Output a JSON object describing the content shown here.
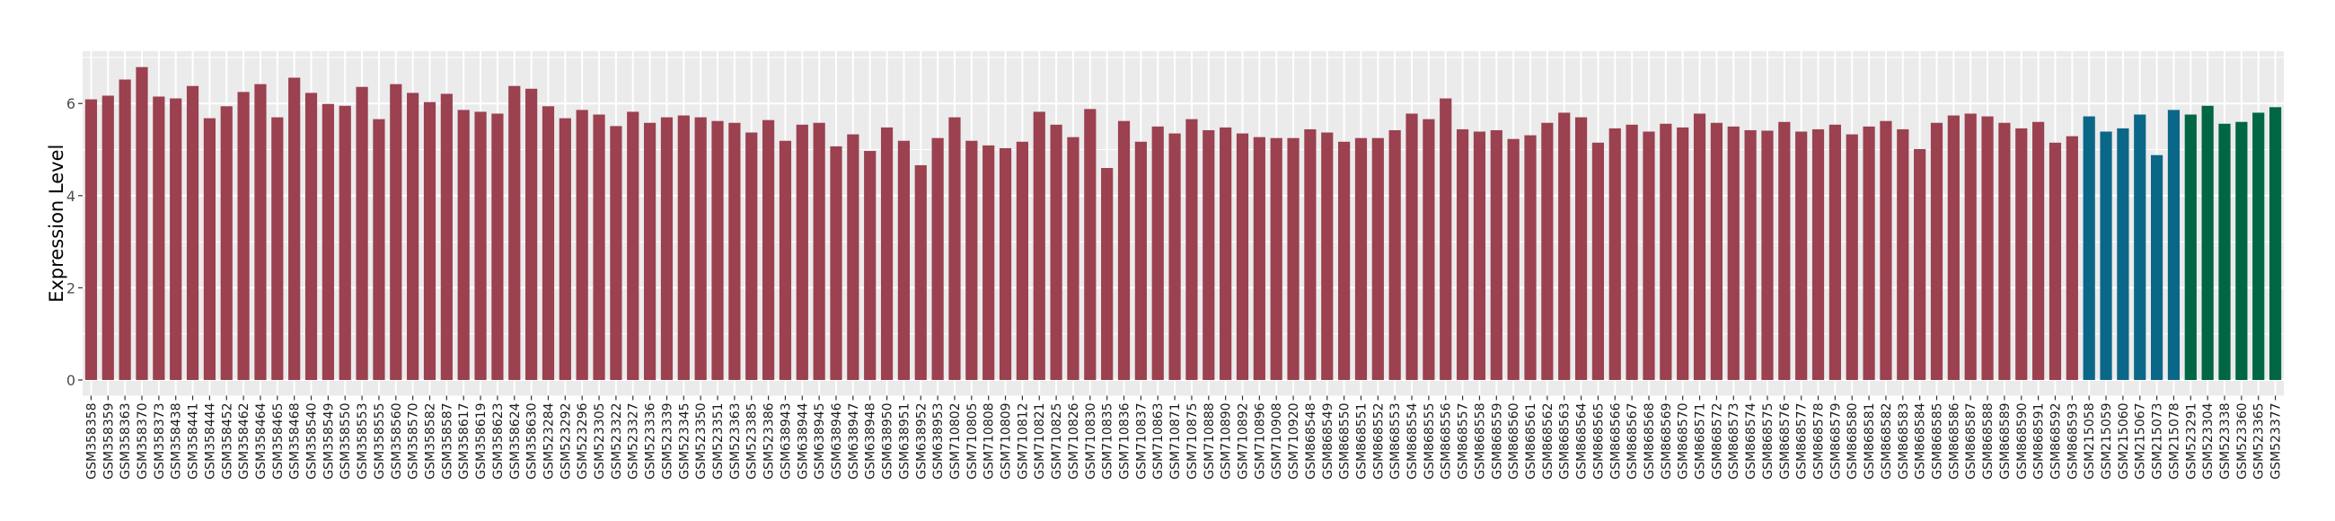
{
  "chart_data": {
    "type": "bar",
    "title": "",
    "xlabel": "",
    "ylabel": "Expression Level",
    "ylim": [
      -0.34,
      7.13
    ],
    "yticks": [
      0,
      2,
      4,
      6
    ],
    "grid": true,
    "legend": "none",
    "colors": {
      "group1": "#9B4150",
      "group2": "#0B6788",
      "group3": "#006644"
    },
    "categories": [
      "GSM358358",
      "GSM358359",
      "GSM358363",
      "GSM358370",
      "GSM358373",
      "GSM358438",
      "GSM358441",
      "GSM358444",
      "GSM358452",
      "GSM358462",
      "GSM358464",
      "GSM358465",
      "GSM358468",
      "GSM358540",
      "GSM358549",
      "GSM358550",
      "GSM358553",
      "GSM358555",
      "GSM358560",
      "GSM358570",
      "GSM358582",
      "GSM358587",
      "GSM358617",
      "GSM358619",
      "GSM358623",
      "GSM358624",
      "GSM358630",
      "GSM523284",
      "GSM523292",
      "GSM523296",
      "GSM523305",
      "GSM523322",
      "GSM523327",
      "GSM523336",
      "GSM523339",
      "GSM523345",
      "GSM523350",
      "GSM523351",
      "GSM523363",
      "GSM523385",
      "GSM523386",
      "GSM638943",
      "GSM638944",
      "GSM638945",
      "GSM638946",
      "GSM638947",
      "GSM638948",
      "GSM638950",
      "GSM638951",
      "GSM638952",
      "GSM638953",
      "GSM710802",
      "GSM710805",
      "GSM710808",
      "GSM710809",
      "GSM710812",
      "GSM710821",
      "GSM710825",
      "GSM710826",
      "GSM710830",
      "GSM710835",
      "GSM710836",
      "GSM710837",
      "GSM710863",
      "GSM710871",
      "GSM710875",
      "GSM710888",
      "GSM710890",
      "GSM710892",
      "GSM710896",
      "GSM710908",
      "GSM710920",
      "GSM868548",
      "GSM868549",
      "GSM868550",
      "GSM868551",
      "GSM868552",
      "GSM868553",
      "GSM868554",
      "GSM868555",
      "GSM868556",
      "GSM868557",
      "GSM868558",
      "GSM868559",
      "GSM868560",
      "GSM868561",
      "GSM868562",
      "GSM868563",
      "GSM868564",
      "GSM868565",
      "GSM868566",
      "GSM868567",
      "GSM868568",
      "GSM868569",
      "GSM868570",
      "GSM868571",
      "GSM868572",
      "GSM868573",
      "GSM868574",
      "GSM868575",
      "GSM868576",
      "GSM868577",
      "GSM868578",
      "GSM868579",
      "GSM868580",
      "GSM868581",
      "GSM868582",
      "GSM868583",
      "GSM868584",
      "GSM868585",
      "GSM868586",
      "GSM868587",
      "GSM868588",
      "GSM868589",
      "GSM868590",
      "GSM868591",
      "GSM868592",
      "GSM868593",
      "GSM215058",
      "GSM215059",
      "GSM215060",
      "GSM215067",
      "GSM215073",
      "GSM215078",
      "GSM523291",
      "GSM523304",
      "GSM523338",
      "GSM523360",
      "GSM523365",
      "GSM523377"
    ],
    "values": [
      6.09,
      6.17,
      6.52,
      6.79,
      6.15,
      6.11,
      6.38,
      5.68,
      5.94,
      6.25,
      6.42,
      5.7,
      6.56,
      6.23,
      5.99,
      5.95,
      6.36,
      5.66,
      6.42,
      6.23,
      6.03,
      6.21,
      5.86,
      5.82,
      5.78,
      6.38,
      6.32,
      5.94,
      5.68,
      5.86,
      5.76,
      5.51,
      5.82,
      5.58,
      5.7,
      5.74,
      5.7,
      5.62,
      5.58,
      5.37,
      5.64,
      5.19,
      5.54,
      5.58,
      5.07,
      5.33,
      4.97,
      5.48,
      5.19,
      4.66,
      5.25,
      5.7,
      5.19,
      5.09,
      5.03,
      5.17,
      5.82,
      5.54,
      5.27,
      5.88,
      4.6,
      5.62,
      5.17,
      5.5,
      5.35,
      5.66,
      5.42,
      5.48,
      5.35,
      5.27,
      5.25,
      5.25,
      5.44,
      5.37,
      5.17,
      5.25,
      5.25,
      5.42,
      5.78,
      5.66,
      6.11,
      5.44,
      5.39,
      5.42,
      5.23,
      5.31,
      5.58,
      5.8,
      5.7,
      5.15,
      5.46,
      5.54,
      5.39,
      5.56,
      5.48,
      5.78,
      5.58,
      5.5,
      5.42,
      5.41,
      5.6,
      5.39,
      5.44,
      5.54,
      5.33,
      5.5,
      5.62,
      5.44,
      5.01,
      5.58,
      5.74,
      5.78,
      5.72,
      5.58,
      5.46,
      5.6,
      5.15,
      5.29,
      5.72,
      5.39,
      5.46,
      5.76,
      4.88,
      5.86,
      5.76,
      5.95,
      5.56,
      5.6,
      5.8,
      5.92
    ],
    "groups": [
      "group1",
      "group1",
      "group1",
      "group1",
      "group1",
      "group1",
      "group1",
      "group1",
      "group1",
      "group1",
      "group1",
      "group1",
      "group1",
      "group1",
      "group1",
      "group1",
      "group1",
      "group1",
      "group1",
      "group1",
      "group1",
      "group1",
      "group1",
      "group1",
      "group1",
      "group1",
      "group1",
      "group1",
      "group1",
      "group1",
      "group1",
      "group1",
      "group1",
      "group1",
      "group1",
      "group1",
      "group1",
      "group1",
      "group1",
      "group1",
      "group1",
      "group1",
      "group1",
      "group1",
      "group1",
      "group1",
      "group1",
      "group1",
      "group1",
      "group1",
      "group1",
      "group1",
      "group1",
      "group1",
      "group1",
      "group1",
      "group1",
      "group1",
      "group1",
      "group1",
      "group1",
      "group1",
      "group1",
      "group1",
      "group1",
      "group1",
      "group1",
      "group1",
      "group1",
      "group1",
      "group1",
      "group1",
      "group1",
      "group1",
      "group1",
      "group1",
      "group1",
      "group1",
      "group1",
      "group1",
      "group1",
      "group1",
      "group1",
      "group1",
      "group1",
      "group1",
      "group1",
      "group1",
      "group1",
      "group1",
      "group1",
      "group1",
      "group1",
      "group1",
      "group1",
      "group1",
      "group1",
      "group1",
      "group1",
      "group1",
      "group1",
      "group1",
      "group1",
      "group1",
      "group1",
      "group1",
      "group1",
      "group1",
      "group1",
      "group1",
      "group1",
      "group1",
      "group1",
      "group1",
      "group1",
      "group1",
      "group1",
      "group1",
      "group2",
      "group2",
      "group2",
      "group2",
      "group2",
      "group2",
      "group3",
      "group3",
      "group3",
      "group3",
      "group3",
      "group3"
    ]
  }
}
